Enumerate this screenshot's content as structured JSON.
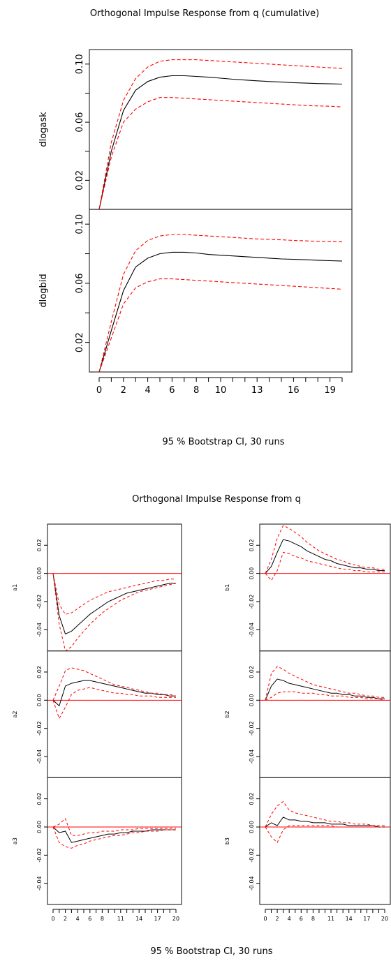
{
  "chart_data": [
    {
      "type": "line",
      "title": "Orthogonal Impulse Response from q (cumulative)",
      "subtitle": "95 % Bootstrap CI,  30 runs",
      "x": [
        0,
        1,
        2,
        3,
        4,
        5,
        6,
        7,
        8,
        9,
        10,
        11,
        12,
        13,
        14,
        15,
        16,
        17,
        18,
        19,
        20
      ],
      "xticks": [
        0,
        2,
        4,
        6,
        8,
        10,
        13,
        16,
        19
      ],
      "ylim": [
        0.0,
        0.11
      ],
      "yticks": [
        0.02,
        0.06,
        0.1
      ],
      "panels": [
        {
          "ylabel": "dlogask",
          "series": [
            {
              "role": "irf",
              "values": [
                0.0,
                0.04,
                0.068,
                0.082,
                0.088,
                0.091,
                0.092,
                0.092,
                0.0915,
                0.091,
                0.0903,
                0.0896,
                0.089,
                0.0885,
                0.088,
                0.0876,
                0.0872,
                0.0869,
                0.0866,
                0.0864,
                0.0862
              ]
            },
            {
              "role": "upper",
              "values": [
                0.0,
                0.046,
                0.075,
                0.09,
                0.098,
                0.102,
                0.103,
                0.103,
                0.103,
                0.1025,
                0.102,
                0.1015,
                0.101,
                0.1005,
                0.1,
                0.0995,
                0.099,
                0.0985,
                0.098,
                0.0975,
                0.097
              ]
            },
            {
              "role": "lower",
              "values": [
                0.0,
                0.036,
                0.06,
                0.069,
                0.074,
                0.077,
                0.077,
                0.0765,
                0.076,
                0.0755,
                0.075,
                0.0745,
                0.074,
                0.0735,
                0.073,
                0.0725,
                0.072,
                0.0715,
                0.0712,
                0.071,
                0.0705
              ]
            }
          ]
        },
        {
          "ylabel": "dlogbid",
          "series": [
            {
              "role": "irf",
              "values": [
                0.0,
                0.028,
                0.055,
                0.071,
                0.077,
                0.08,
                0.081,
                0.081,
                0.0805,
                0.0795,
                0.079,
                0.0785,
                0.078,
                0.0775,
                0.077,
                0.0765,
                0.0762,
                0.0759,
                0.0756,
                0.0753,
                0.075
              ]
            },
            {
              "role": "upper",
              "values": [
                0.0,
                0.034,
                0.066,
                0.082,
                0.089,
                0.092,
                0.093,
                0.093,
                0.0925,
                0.092,
                0.0915,
                0.091,
                0.0905,
                0.09,
                0.0897,
                0.0894,
                0.089,
                0.0887,
                0.0884,
                0.0882,
                0.088
              ]
            },
            {
              "role": "lower",
              "values": [
                0.0,
                0.023,
                0.046,
                0.057,
                0.061,
                0.063,
                0.063,
                0.0625,
                0.062,
                0.0615,
                0.061,
                0.0605,
                0.06,
                0.0595,
                0.059,
                0.0585,
                0.058,
                0.0575,
                0.057,
                0.0565,
                0.056
              ]
            }
          ]
        }
      ]
    },
    {
      "type": "line",
      "title": "Orthogonal Impulse Response from q",
      "subtitle": "95 % Bootstrap CI,  30 runs",
      "x": [
        0,
        1,
        2,
        3,
        4,
        5,
        6,
        7,
        8,
        9,
        10,
        11,
        12,
        13,
        14,
        15,
        16,
        17,
        18,
        19,
        20
      ],
      "xticks": [
        0,
        2,
        4,
        6,
        8,
        11,
        14,
        17,
        20
      ],
      "ylim": [
        -0.055,
        0.035
      ],
      "yticks": [
        -0.04,
        -0.02,
        0.0,
        0.02
      ],
      "ytick_labels": [
        "-0.04",
        "-0.02",
        "0.00",
        "0.02"
      ],
      "panels": [
        {
          "ylabel": "a1",
          "series": [
            {
              "role": "irf",
              "values": [
                0.0,
                -0.03,
                -0.043,
                -0.041,
                -0.037,
                -0.033,
                -0.029,
                -0.026,
                -0.023,
                -0.02,
                -0.018,
                -0.016,
                -0.014,
                -0.013,
                -0.012,
                -0.011,
                -0.01,
                -0.009,
                -0.008,
                -0.007,
                -0.007
              ]
            },
            {
              "role": "upper",
              "values": [
                0.0,
                -0.022,
                -0.029,
                -0.028,
                -0.025,
                -0.022,
                -0.019,
                -0.017,
                -0.015,
                -0.013,
                -0.012,
                -0.011,
                -0.01,
                -0.009,
                -0.008,
                -0.007,
                -0.006,
                -0.005,
                -0.005,
                -0.004,
                -0.004
              ]
            },
            {
              "role": "lower",
              "values": [
                0.0,
                -0.036,
                -0.055,
                -0.052,
                -0.046,
                -0.041,
                -0.036,
                -0.032,
                -0.028,
                -0.025,
                -0.022,
                -0.019,
                -0.017,
                -0.015,
                -0.013,
                -0.012,
                -0.011,
                -0.01,
                -0.009,
                -0.008,
                -0.007
              ]
            }
          ]
        },
        {
          "ylabel": "b1",
          "series": [
            {
              "role": "irf",
              "values": [
                0.0,
                0.005,
                0.015,
                0.024,
                0.023,
                0.021,
                0.019,
                0.016,
                0.014,
                0.012,
                0.01,
                0.009,
                0.007,
                0.006,
                0.005,
                0.004,
                0.004,
                0.003,
                0.003,
                0.002,
                0.002
              ]
            },
            {
              "role": "upper",
              "values": [
                0.0,
                0.01,
                0.025,
                0.034,
                0.032,
                0.029,
                0.026,
                0.022,
                0.019,
                0.016,
                0.014,
                0.012,
                0.01,
                0.009,
                0.007,
                0.006,
                0.005,
                0.004,
                0.004,
                0.003,
                0.003
              ]
            },
            {
              "role": "lower",
              "values": [
                0.0,
                -0.005,
                0.002,
                0.015,
                0.014,
                0.012,
                0.011,
                0.009,
                0.008,
                0.007,
                0.006,
                0.005,
                0.004,
                0.003,
                0.003,
                0.002,
                0.002,
                0.001,
                0.001,
                0.001,
                0.001
              ]
            }
          ]
        },
        {
          "ylabel": "a2",
          "series": [
            {
              "role": "irf",
              "values": [
                0.0,
                -0.004,
                0.01,
                0.012,
                0.013,
                0.014,
                0.014,
                0.013,
                0.012,
                0.011,
                0.01,
                0.009,
                0.008,
                0.007,
                0.006,
                0.005,
                0.005,
                0.004,
                0.004,
                0.003,
                0.003
              ]
            },
            {
              "role": "upper",
              "values": [
                0.0,
                0.01,
                0.021,
                0.023,
                0.022,
                0.021,
                0.019,
                0.017,
                0.015,
                0.013,
                0.011,
                0.01,
                0.009,
                0.008,
                0.007,
                0.006,
                0.005,
                0.005,
                0.004,
                0.004,
                0.003
              ]
            },
            {
              "role": "lower",
              "values": [
                0.0,
                -0.013,
                -0.005,
                0.004,
                0.007,
                0.008,
                0.009,
                0.008,
                0.007,
                0.006,
                0.005,
                0.005,
                0.004,
                0.004,
                0.003,
                0.003,
                0.003,
                0.002,
                0.002,
                0.002,
                0.002
              ]
            }
          ]
        },
        {
          "ylabel": "b2",
          "series": [
            {
              "role": "irf",
              "values": [
                0.0,
                0.01,
                0.015,
                0.014,
                0.012,
                0.011,
                0.01,
                0.009,
                0.008,
                0.007,
                0.006,
                0.005,
                0.005,
                0.004,
                0.004,
                0.003,
                0.003,
                0.002,
                0.002,
                0.001,
                0.001
              ]
            },
            {
              "role": "upper",
              "values": [
                0.0,
                0.019,
                0.024,
                0.022,
                0.019,
                0.017,
                0.015,
                0.013,
                0.011,
                0.01,
                0.009,
                0.008,
                0.007,
                0.006,
                0.005,
                0.005,
                0.004,
                0.003,
                0.003,
                0.002,
                0.002
              ]
            },
            {
              "role": "lower",
              "values": [
                0.0,
                0.002,
                0.005,
                0.006,
                0.006,
                0.006,
                0.005,
                0.005,
                0.005,
                0.004,
                0.004,
                0.003,
                0.003,
                0.003,
                0.002,
                0.002,
                0.002,
                0.001,
                0.001,
                0.001,
                0.0
              ]
            }
          ]
        },
        {
          "ylabel": "a3",
          "series": [
            {
              "role": "irf",
              "values": [
                0.0,
                -0.004,
                -0.003,
                -0.011,
                -0.01,
                -0.009,
                -0.008,
                -0.007,
                -0.006,
                -0.005,
                -0.005,
                -0.004,
                -0.004,
                -0.003,
                -0.003,
                -0.003,
                -0.002,
                -0.002,
                -0.002,
                -0.002,
                -0.002
              ]
            },
            {
              "role": "upper",
              "values": [
                0.0,
                0.002,
                0.006,
                -0.006,
                -0.006,
                -0.005,
                -0.004,
                -0.004,
                -0.003,
                -0.003,
                -0.003,
                -0.002,
                -0.002,
                -0.002,
                -0.001,
                -0.001,
                -0.001,
                -0.001,
                -0.001,
                -0.001,
                -0.001
              ]
            },
            {
              "role": "lower",
              "values": [
                0.0,
                -0.011,
                -0.014,
                -0.015,
                -0.013,
                -0.012,
                -0.01,
                -0.009,
                -0.008,
                -0.007,
                -0.006,
                -0.006,
                -0.005,
                -0.004,
                -0.004,
                -0.003,
                -0.003,
                -0.003,
                -0.002,
                -0.002,
                -0.002
              ]
            }
          ]
        },
        {
          "ylabel": "b3",
          "series": [
            {
              "role": "irf",
              "values": [
                0.0,
                0.003,
                0.001,
                0.007,
                0.005,
                0.005,
                0.004,
                0.004,
                0.003,
                0.003,
                0.003,
                0.002,
                0.002,
                0.002,
                0.001,
                0.001,
                0.001,
                0.001,
                0.001,
                0.0,
                0.0
              ]
            },
            {
              "role": "upper",
              "values": [
                0.0,
                0.009,
                0.015,
                0.018,
                0.012,
                0.01,
                0.009,
                0.008,
                0.007,
                0.006,
                0.005,
                0.004,
                0.004,
                0.003,
                0.003,
                0.002,
                0.002,
                0.002,
                0.001,
                0.001,
                0.001
              ]
            },
            {
              "role": "lower",
              "values": [
                0.0,
                -0.007,
                -0.011,
                -0.002,
                0.001,
                0.001,
                0.001,
                0.001,
                0.001,
                0.001,
                0.001,
                0.001,
                0.0,
                0.0,
                0.0,
                0.0,
                0.0,
                0.0,
                0.0,
                0.0,
                0.0
              ]
            }
          ]
        }
      ]
    }
  ],
  "colors": {
    "irf": "#000000",
    "ci": "#ff0000",
    "zero_line": "#ff0000",
    "frame": "#333333"
  }
}
